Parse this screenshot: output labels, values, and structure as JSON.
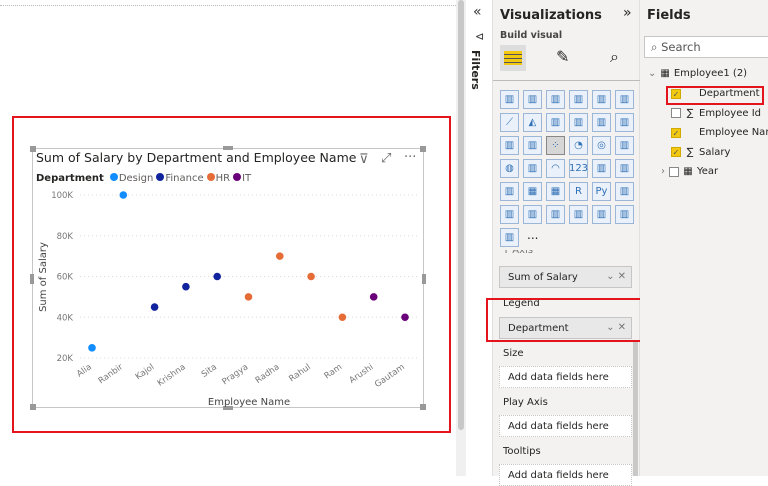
{
  "chart_data": {
    "type": "scatter",
    "title": "Sum of Salary by Department and Employee Name",
    "xlabel": "Employee Name",
    "ylabel": "Sum of Salary",
    "legend_title": "Department",
    "legend_position": "top-left",
    "categories": [
      "Alia",
      "Ranbir",
      "Kajol",
      "Krishna",
      "Sita",
      "Pragya",
      "Radha",
      "Rahul",
      "Ram",
      "Arushi",
      "Gautam"
    ],
    "yticks": [
      "20K",
      "40K",
      "60K",
      "80K",
      "100K"
    ],
    "ylim": [
      20000,
      100000
    ],
    "grid": true,
    "series": [
      {
        "name": "Design",
        "color": "#118dff",
        "points": [
          [
            "Alia",
            25000
          ],
          [
            "Ranbir",
            100000
          ]
        ]
      },
      {
        "name": "Finance",
        "color": "#12239e",
        "points": [
          [
            "Kajol",
            45000
          ],
          [
            "Krishna",
            55000
          ],
          [
            "Sita",
            60000
          ]
        ]
      },
      {
        "name": "HR",
        "color": "#e66c37",
        "points": [
          [
            "Pragya",
            50000
          ],
          [
            "Radha",
            70000
          ],
          [
            "Rahul",
            60000
          ],
          [
            "Ram",
            40000
          ]
        ]
      },
      {
        "name": "IT",
        "color": "#6b007b",
        "points": [
          [
            "Arushi",
            50000
          ],
          [
            "Gautam",
            40000
          ]
        ]
      }
    ]
  },
  "filters": {
    "label": "Filters"
  },
  "viz": {
    "title": "Visualizations",
    "build": "Build visual",
    "more": "...",
    "icons": [
      "stacked-bar",
      "stacked-column",
      "clustered-bar",
      "clustered-column",
      "100-bar",
      "100-column",
      "line",
      "area",
      "stacked-area",
      "line-column",
      "line-clustered",
      "ribbon",
      "waterfall",
      "funnel",
      "scatter",
      "pie",
      "donut",
      "treemap",
      "map",
      "filled-map",
      "gauge",
      "card",
      "multi-row-card",
      "kpi",
      "slicer",
      "table",
      "matrix",
      "R",
      "Py",
      "key-influencers",
      "decomp-tree",
      "qa",
      "narrative",
      "paginated",
      "power-automate",
      "power-apps",
      "smart-narrative"
    ],
    "wells": {
      "y_label": "Y Axis",
      "y_value": "Sum of Salary",
      "legend_label": "Legend",
      "legend_value": "Department",
      "size_label": "Size",
      "play_label": "Play Axis",
      "tooltips_label": "Tooltips",
      "placeholder": "Add data fields here"
    }
  },
  "fields": {
    "title": "Fields",
    "search_placeholder": "Search",
    "table": "Employee1 (2)",
    "items": [
      {
        "name": "Department",
        "checked": true,
        "sigma": false
      },
      {
        "name": "Employee Id",
        "checked": false,
        "sigma": true
      },
      {
        "name": "Employee Name",
        "checked": true,
        "sigma": false
      },
      {
        "name": "Salary",
        "checked": true,
        "sigma": true
      },
      {
        "name": "Year",
        "checked": false,
        "sigma": false
      }
    ]
  }
}
